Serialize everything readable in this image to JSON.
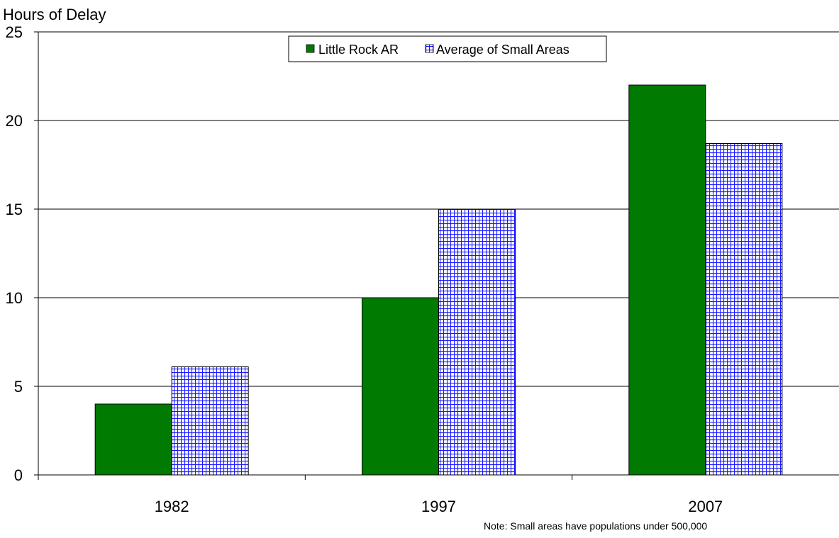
{
  "chart_data": {
    "type": "bar",
    "title": "",
    "xlabel": "",
    "ylabel": "Hours of Delay",
    "categories": [
      "1982",
      "1997",
      "2007"
    ],
    "series": [
      {
        "name": "Little Rock AR",
        "values": [
          4,
          10,
          22
        ],
        "color": "#007a00",
        "pattern": "solid"
      },
      {
        "name": "Average of Small Areas",
        "values": [
          6.1,
          15,
          18.7
        ],
        "color": "#1a1aff",
        "pattern": "grid"
      }
    ],
    "ylim": [
      0,
      25
    ],
    "yticks": [
      "0",
      "5",
      "10",
      "15",
      "20",
      "25"
    ],
    "grid": true,
    "legend_position": "top-center",
    "note": "Note: Small areas have populations under 500,000"
  }
}
